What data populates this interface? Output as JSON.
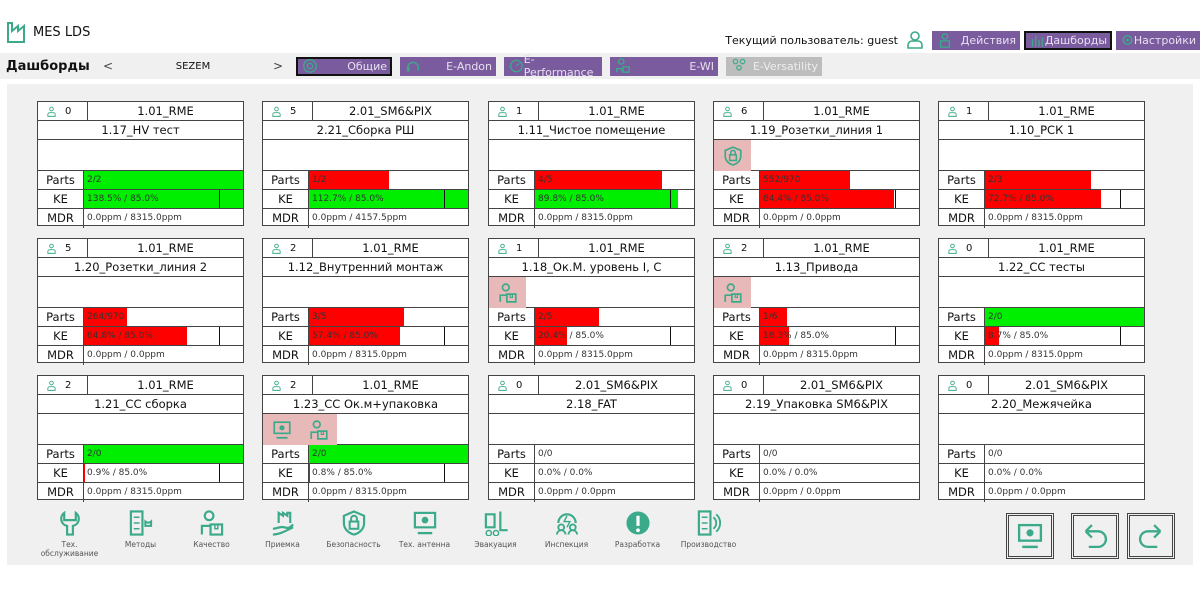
{
  "app": {
    "title": "MES LDS"
  },
  "user": {
    "label": "Текущий пользователь: guest"
  },
  "top_buttons": [
    {
      "label": "Действия",
      "icon": "user-box-icon",
      "active": false
    },
    {
      "label": "Дашборды",
      "icon": "bar-chart-icon",
      "active": true
    },
    {
      "label": "Настройки",
      "icon": "settings-icon",
      "active": false
    }
  ],
  "nav": {
    "title": "Дашборды",
    "prev": "<",
    "next": ">",
    "plant": "SEZEM",
    "tabs": [
      {
        "label": "Общие",
        "icon": "target-icon",
        "active": true
      },
      {
        "label": "E-Andon",
        "icon": "headset-icon"
      },
      {
        "label": "E-Performance",
        "icon": "gauge-icon"
      },
      {
        "label": "E-WI",
        "icon": "worker-icon"
      },
      {
        "label": "E-Versatility",
        "icon": "team-icon",
        "disabled": true
      }
    ]
  },
  "labels": {
    "parts": "Parts",
    "ke": "KE",
    "mdr": "MDR"
  },
  "colors": {
    "accent": "#3aaa8a",
    "purple": "#7a5c9e",
    "ok": "#00ee00",
    "bad": "#ff0000",
    "alert_bg": "#e8b9b9"
  },
  "cards": [
    {
      "operators": "0",
      "line": "1.01_RME",
      "name": "1.17_HV тест",
      "alerts": [],
      "parts": "2/2",
      "parts_fill": 1,
      "parts_ok": true,
      "ke": "138.5% / 85.0%",
      "ke_value": 138.5,
      "ke_target": 85,
      "mdr": "0.0ppm / 8315.0ppm"
    },
    {
      "operators": "5",
      "line": "2.01_SM6&PIX",
      "name": "2.21_Сборка РШ",
      "alerts": [],
      "parts": "1/2",
      "parts_fill": 0.5,
      "parts_ok": false,
      "ke": "112.7% / 85.0%",
      "ke_value": 112.7,
      "ke_target": 85,
      "mdr": "0.0ppm / 4157.5ppm"
    },
    {
      "operators": "1",
      "line": "1.01_RME",
      "name": "1.11_Чистое помещение",
      "alerts": [],
      "parts": "4/5",
      "parts_fill": 0.8,
      "parts_ok": false,
      "ke": "89.8% / 85.0%",
      "ke_value": 89.8,
      "ke_target": 85,
      "mdr": "0.0ppm / 8315.0ppm"
    },
    {
      "operators": "6",
      "line": "1.01_RME",
      "name": "1.19_Розетки_линия 1",
      "alerts": [
        "lock-shield-icon"
      ],
      "parts": "552/970",
      "parts_fill": 0.569,
      "parts_ok": false,
      "ke": "84.4% / 85.0%",
      "ke_value": 84.4,
      "ke_target": 85,
      "mdr": "0.0ppm / 0.0ppm"
    },
    {
      "operators": "1",
      "line": "1.01_RME",
      "name": "1.10_РСК 1",
      "alerts": [],
      "parts": "2/3",
      "parts_fill": 0.667,
      "parts_ok": false,
      "ke": "72.7% / 85.0%",
      "ke_value": 72.7,
      "ke_target": 85,
      "mdr": "0.0ppm / 8315.0ppm"
    },
    {
      "operators": "5",
      "line": "1.01_RME",
      "name": "1.20_Розетки_линия 2",
      "alerts": [],
      "parts": "264/970",
      "parts_fill": 0.272,
      "parts_ok": false,
      "ke": "64.8% / 85.0%",
      "ke_value": 64.8,
      "ke_target": 85,
      "mdr": "0.0ppm / 0.0ppm"
    },
    {
      "operators": "2",
      "line": "1.01_RME",
      "name": "1.12_Внутренний монтаж",
      "alerts": [],
      "parts": "3/5",
      "parts_fill": 0.6,
      "parts_ok": false,
      "ke": "57.4% / 85.0%",
      "ke_value": 57.4,
      "ke_target": 85,
      "mdr": "0.0ppm / 8315.0ppm"
    },
    {
      "operators": "1",
      "line": "1.01_RME",
      "name": "1.18_Ок.М. уровень I, C",
      "alerts": [
        "quality-icon"
      ],
      "parts": "2/5",
      "parts_fill": 0.4,
      "parts_ok": false,
      "ke": "20.4% / 85.0%",
      "ke_value": 20.4,
      "ke_target": 85,
      "mdr": "0.0ppm / 8315.0ppm"
    },
    {
      "operators": "2",
      "line": "1.01_RME",
      "name": "1.13_Привода",
      "alerts": [
        "quality-icon"
      ],
      "parts": "1/6",
      "parts_fill": 0.167,
      "parts_ok": false,
      "ke": "18.3% / 85.0%",
      "ke_value": 18.3,
      "ke_target": 85,
      "mdr": "0.0ppm / 8315.0ppm"
    },
    {
      "operators": "0",
      "line": "1.01_RME",
      "name": "1.22_СС тесты",
      "alerts": [],
      "parts": "2/0",
      "parts_fill": 1,
      "parts_ok": true,
      "ke": "8.7% / 85.0%",
      "ke_value": 8.7,
      "ke_target": 85,
      "mdr": "0.0ppm / 8315.0ppm"
    },
    {
      "operators": "2",
      "line": "1.01_RME",
      "name": "1.21_СС сборка",
      "alerts": [],
      "parts": "2/0",
      "parts_fill": 1,
      "parts_ok": true,
      "ke": "0.9% / 85.0%",
      "ke_value": 0.9,
      "ke_target": 85,
      "mdr": "0.0ppm / 8315.0ppm"
    },
    {
      "operators": "2",
      "line": "1.01_RME",
      "name": "1.23_СС Ок.м+упаковка",
      "alerts": [
        "monitor-gear-icon",
        "quality-icon"
      ],
      "parts": "2/0",
      "parts_fill": 1,
      "parts_ok": true,
      "ke": "0.8% / 85.0%",
      "ke_value": 0.8,
      "ke_target": 85,
      "mdr": "0.0ppm / 8315.0ppm"
    },
    {
      "operators": "0",
      "line": "2.01_SM6&PIX",
      "name": "2.18_FAT",
      "alerts": [],
      "parts": "0/0",
      "parts_fill": 0,
      "parts_ok": false,
      "ke": "0.0% / 0.0%",
      "ke_value": 0,
      "ke_target": 0,
      "mdr": "0.0ppm / 0.0ppm"
    },
    {
      "operators": "0",
      "line": "2.01_SM6&PIX",
      "name": "2.19_Упаковка SM6&PIX",
      "alerts": [],
      "parts": "0/0",
      "parts_fill": 0,
      "parts_ok": false,
      "ke": "0.0% / 0.0%",
      "ke_value": 0,
      "ke_target": 0,
      "mdr": "0.0ppm / 0.0ppm"
    },
    {
      "operators": "0",
      "line": "2.01_SM6&PIX",
      "name": "2.20_Межячейка",
      "alerts": [],
      "parts": "0/0",
      "parts_fill": 0,
      "parts_ok": false,
      "ke": "0.0% / 0.0%",
      "ke_value": 0,
      "ke_target": 0,
      "mdr": "0.0ppm / 0.0ppm"
    }
  ],
  "dock": [
    {
      "label": "Тех. обслуживание",
      "icon": "wrench-icon"
    },
    {
      "label": "Методы",
      "icon": "methods-icon"
    },
    {
      "label": "Качество",
      "icon": "quality-icon"
    },
    {
      "label": "Приемка",
      "icon": "hand-factory-icon"
    },
    {
      "label": "Безопасность",
      "icon": "lock-shield-icon"
    },
    {
      "label": "Тех. антенна",
      "icon": "monitor-gear-icon"
    },
    {
      "label": "Эвакуация",
      "icon": "forklift-icon"
    },
    {
      "label": "Инспекция",
      "icon": "inspection-icon"
    },
    {
      "label": "Разработка",
      "icon": "alert-icon"
    },
    {
      "label": "Производство",
      "icon": "production-icon"
    }
  ],
  "actions": [
    {
      "icon": "monitor-gear-icon"
    },
    {
      "icon": "undo-icon"
    },
    {
      "icon": "redo-icon"
    }
  ]
}
